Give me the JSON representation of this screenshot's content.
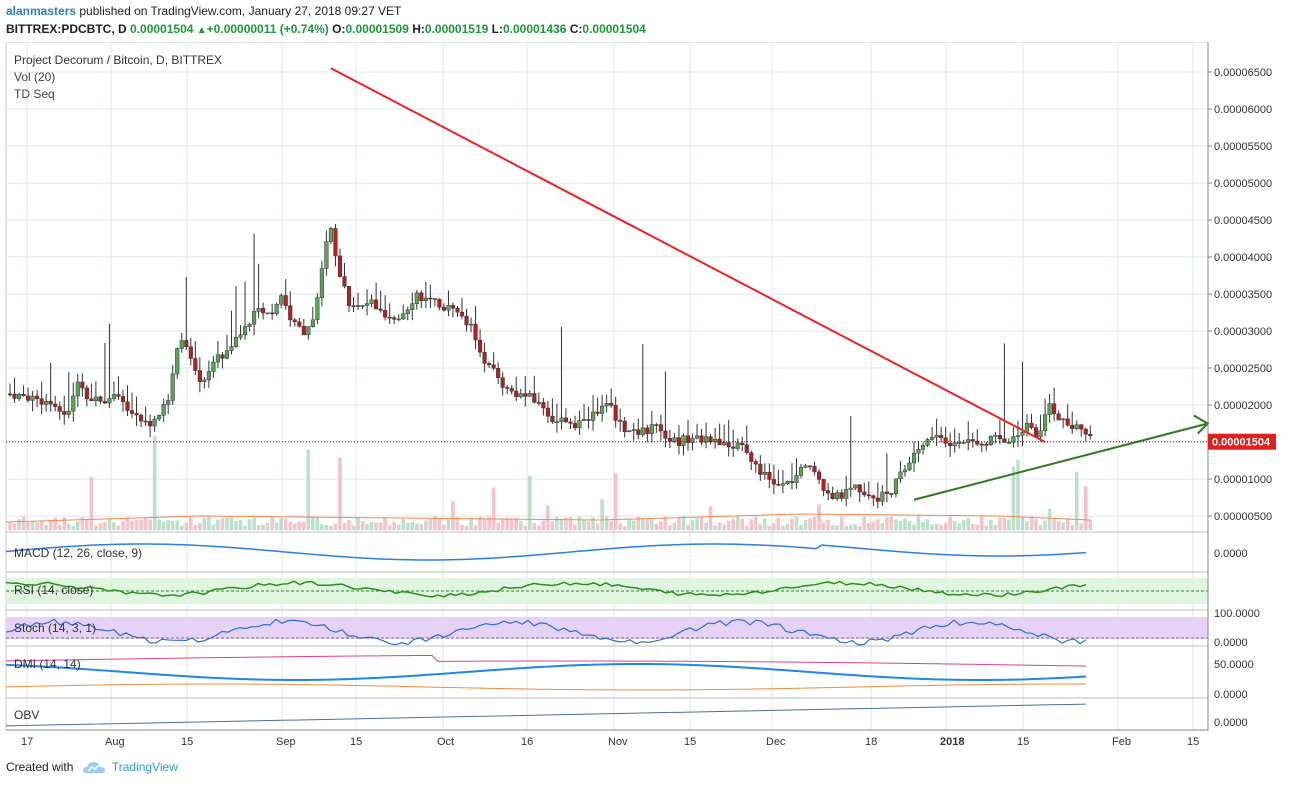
{
  "header": {
    "user": "alanmasters",
    "published_text": " published on TradingView.com, January 27, 2018 09:27 VET",
    "symbol": "BITTREX:PDCBTC, D",
    "last": "0.00001504",
    "change": "+0.00000011 (+0.74%)",
    "open_label": "O:",
    "open": "0.00001509",
    "high_label": "H:",
    "high": "0.00001519",
    "low_label": "L:",
    "low": "0.00001436",
    "close_label": "C:",
    "close": "0.00001504"
  },
  "legend": {
    "title": "Project Decorum / Bitcoin, D, BITTREX",
    "vol": "Vol (20)",
    "tdseq": "TD Seq"
  },
  "footer": {
    "created_with": "Created with",
    "brand": "TradingView"
  },
  "colors": {
    "up": "#5aa55a",
    "down": "#b22222",
    "trend_down": "#ee2222",
    "trend_up": "#2f7a1e",
    "price_line": "#a30000",
    "grid": "#dde7f5"
  },
  "chart_data": {
    "type": "candlestick",
    "symbol": "BITTREX:PDCBTC",
    "price_axis": {
      "ticks": [
        "0.00000500",
        "0.00001000",
        "0.00001500",
        "0.00002000",
        "0.00002500",
        "0.00003000",
        "0.00003500",
        "0.00004000",
        "0.00004500",
        "0.00005000",
        "0.00005500",
        "0.00006000",
        "0.00006500"
      ],
      "range": [
        2.8e-06,
        6.6e-05
      ],
      "last_price_label": "0.00001504"
    },
    "time_axis": {
      "labels": [
        "17",
        "Aug",
        "15",
        "Sep",
        "15",
        "Oct",
        "16",
        "Nov",
        "15",
        "Dec",
        "18",
        "2018",
        "15",
        "Feb",
        "15"
      ]
    },
    "close_path": [
      [
        0,
        2.15
      ],
      [
        5,
        2.12
      ],
      [
        10,
        2.1
      ],
      [
        15,
        2.05
      ],
      [
        20,
        2.0
      ],
      [
        25,
        1.8
      ],
      [
        30,
        2.3
      ],
      [
        35,
        2.1
      ],
      [
        40,
        2.05
      ],
      [
        45,
        2.1
      ],
      [
        50,
        2.05
      ],
      [
        55,
        1.85
      ],
      [
        60,
        1.75
      ],
      [
        65,
        1.8
      ],
      [
        70,
        2.1
      ],
      [
        75,
        3.0
      ],
      [
        80,
        2.6
      ],
      [
        85,
        2.3
      ],
      [
        90,
        2.6
      ],
      [
        95,
        2.7
      ],
      [
        100,
        2.9
      ],
      [
        105,
        3.1
      ],
      [
        110,
        3.3
      ],
      [
        115,
        3.2
      ],
      [
        120,
        3.5
      ],
      [
        125,
        3.1
      ],
      [
        130,
        3.0
      ],
      [
        135,
        3.2
      ],
      [
        140,
        4.2
      ],
      [
        142,
        4.4
      ],
      [
        145,
        3.8
      ],
      [
        150,
        3.4
      ],
      [
        155,
        3.3
      ],
      [
        160,
        3.4
      ],
      [
        165,
        3.2
      ],
      [
        170,
        3.1
      ],
      [
        175,
        3.3
      ],
      [
        180,
        3.5
      ],
      [
        185,
        3.4
      ],
      [
        190,
        3.35
      ],
      [
        195,
        3.3
      ],
      [
        200,
        3.2
      ],
      [
        205,
        3.0
      ],
      [
        210,
        2.6
      ],
      [
        215,
        2.4
      ],
      [
        220,
        2.2
      ],
      [
        225,
        2.15
      ],
      [
        230,
        2.1
      ],
      [
        235,
        2.0
      ],
      [
        240,
        1.8
      ],
      [
        245,
        1.8
      ],
      [
        250,
        1.75
      ],
      [
        255,
        1.8
      ],
      [
        260,
        1.9
      ],
      [
        265,
        2.0
      ],
      [
        270,
        1.75
      ],
      [
        275,
        1.6
      ],
      [
        280,
        1.65
      ],
      [
        285,
        1.7
      ],
      [
        290,
        1.6
      ],
      [
        295,
        1.5
      ],
      [
        300,
        1.55
      ],
      [
        305,
        1.55
      ],
      [
        310,
        1.5
      ],
      [
        315,
        1.5
      ],
      [
        320,
        1.45
      ],
      [
        325,
        1.4
      ],
      [
        330,
        1.2
      ],
      [
        335,
        1.0
      ],
      [
        340,
        0.9
      ],
      [
        345,
        0.95
      ],
      [
        350,
        1.1
      ],
      [
        355,
        1.2
      ],
      [
        360,
        0.9
      ],
      [
        365,
        0.75
      ],
      [
        370,
        0.8
      ],
      [
        375,
        0.9
      ],
      [
        380,
        0.78
      ],
      [
        385,
        0.75
      ],
      [
        390,
        0.85
      ],
      [
        395,
        1.1
      ],
      [
        400,
        1.35
      ],
      [
        405,
        1.5
      ],
      [
        410,
        1.6
      ],
      [
        415,
        1.45
      ],
      [
        420,
        1.5
      ],
      [
        425,
        1.55
      ],
      [
        430,
        1.5
      ],
      [
        435,
        1.55
      ],
      [
        440,
        1.5
      ],
      [
        445,
        1.6
      ],
      [
        450,
        1.7
      ],
      [
        455,
        1.55
      ],
      [
        460,
        2.0
      ],
      [
        465,
        1.8
      ],
      [
        470,
        1.7
      ],
      [
        475,
        1.65
      ],
      [
        480,
        1.6
      ],
      [
        485,
        1.55
      ],
      [
        490,
        1.52
      ]
    ],
    "close_path_units": {
      "x": "days since first bar",
      "y": "price x 1e-5 BTC"
    },
    "trendlines": [
      {
        "name": "descending resistance",
        "from": [
          142,
          6.55
        ],
        "to": [
          458,
          1.5
        ]
      },
      {
        "name": "ascending support",
        "from": [
          400,
          0.72
        ],
        "to": [
          530,
          1.75
        ]
      }
    ],
    "indicators": [
      {
        "name": "MACD (12, 26, close, 9)",
        "axis": "0.0000"
      },
      {
        "name": "RSI (14, close)"
      },
      {
        "name": "Stoch (14, 3, 1)",
        "axis": [
          "100.0000",
          "0.0000"
        ]
      },
      {
        "name": "DMI (14, 14)",
        "axis": [
          "50.0000",
          "0.0000"
        ]
      },
      {
        "name": "OBV",
        "axis": "0.0000"
      }
    ]
  }
}
